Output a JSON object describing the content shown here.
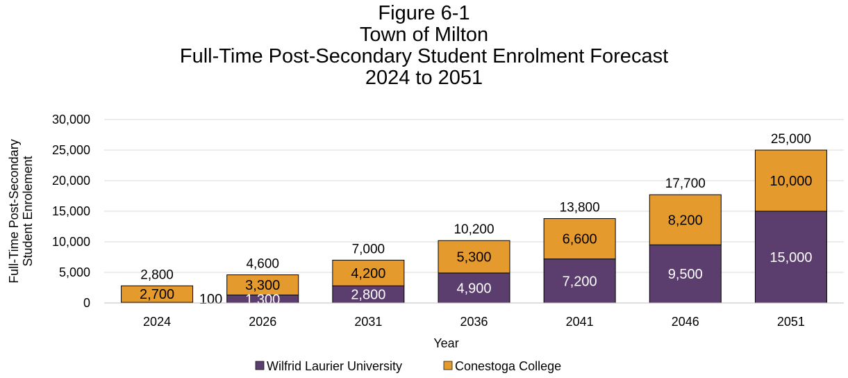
{
  "title_lines": [
    "Figure 6-1",
    "Town of Milton",
    "Full-Time Post-Secondary Student Enrolment Forecast",
    "2024 to 2051"
  ],
  "chart_data": {
    "type": "bar",
    "stacked": true,
    "categories": [
      "2024",
      "2026",
      "2031",
      "2036",
      "2041",
      "2046",
      "2051"
    ],
    "series": [
      {
        "name": "Wilfrid Laurier University",
        "values": [
          100,
          1300,
          2800,
          4900,
          7200,
          9500,
          15000
        ],
        "labels": [
          "100",
          "1,300",
          "2,800",
          "4,900",
          "7,200",
          "9,500",
          "15,000"
        ],
        "color": "#5b3e6e"
      },
      {
        "name": "Conestoga College",
        "values": [
          2700,
          3300,
          4200,
          5300,
          6600,
          8200,
          10000
        ],
        "labels": [
          "2,700",
          "3,300",
          "4,200",
          "5,300",
          "6,600",
          "8,200",
          "10,000"
        ],
        "color": "#e59a2e"
      }
    ],
    "totals": [
      "2,800",
      "4,600",
      "7,000",
      "10,200",
      "13,800",
      "17,700",
      "25,000"
    ],
    "xlabel": "Year",
    "ylabel_lines": [
      "Full-Time Post-Secondary",
      "Student Enrolement"
    ],
    "ylim": [
      0,
      30000
    ],
    "yticks": [
      0,
      5000,
      10000,
      15000,
      20000,
      25000,
      30000
    ],
    "ytick_labels": [
      "0",
      "5,000",
      "10,000",
      "15,000",
      "20,000",
      "25,000",
      "30,000"
    ],
    "grid": true,
    "legend_position": "bottom"
  }
}
